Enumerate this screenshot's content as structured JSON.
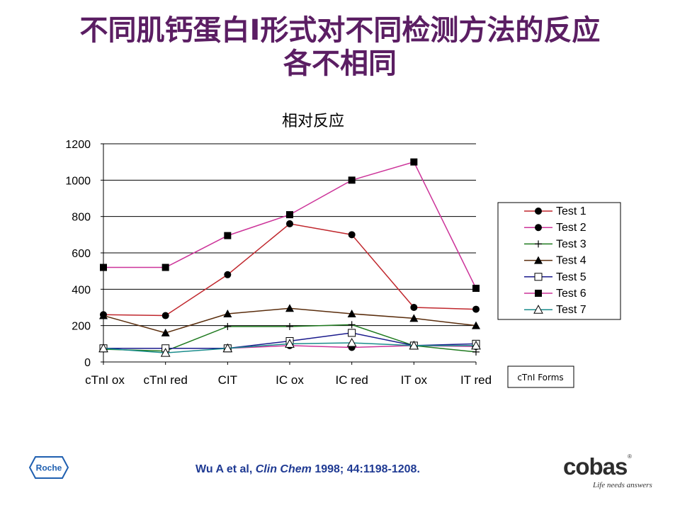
{
  "slide": {
    "title_line1": "不同肌钙蛋白I形式对不同检测方法的反应",
    "title_line2": "各不相同"
  },
  "citation": {
    "authors": "Wu A et al, ",
    "journal": "Clin Chem",
    "details": " 1998; 44:1198-1208."
  },
  "logos": {
    "roche": "Roche",
    "cobas": "cobas",
    "cobas_reg": "®",
    "cobas_tagline": "Life needs answers"
  },
  "chart_data": {
    "type": "line",
    "title": "相对反应",
    "xlabel": "cTnI Forms",
    "ylabel": "",
    "categories": [
      "cTnI ox",
      "cTnI red",
      "CIT",
      "IC ox",
      "IC red",
      "IT ox",
      "IT red"
    ],
    "ylim": [
      0,
      1200
    ],
    "yticks": [
      0,
      200,
      400,
      600,
      800,
      1000,
      1200
    ],
    "grid": true,
    "legend_position": "right",
    "series": [
      {
        "name": "Test 1",
        "color": "#c0272d",
        "marker": "circle-filled",
        "values": [
          260,
          255,
          480,
          760,
          700,
          300,
          290
        ]
      },
      {
        "name": "Test 2",
        "color": "#cc3399",
        "marker": "circle-filled",
        "values": [
          75,
          75,
          75,
          90,
          80,
          90,
          85
        ]
      },
      {
        "name": "Test 3",
        "color": "#1f7a1f",
        "marker": "plus",
        "values": [
          70,
          60,
          195,
          195,
          205,
          90,
          55
        ]
      },
      {
        "name": "Test 4",
        "color": "#5a2d0c",
        "marker": "triangle-filled",
        "values": [
          255,
          160,
          265,
          295,
          265,
          240,
          200
        ]
      },
      {
        "name": "Test 5",
        "color": "#1a1a8c",
        "marker": "square-open",
        "values": [
          75,
          75,
          75,
          115,
          160,
          90,
          100
        ]
      },
      {
        "name": "Test 6",
        "color": "#cc3399",
        "marker": "square-filled",
        "values": [
          520,
          520,
          695,
          810,
          1000,
          1100,
          405
        ]
      },
      {
        "name": "Test 7",
        "color": "#1a8c8c",
        "marker": "triangle-open",
        "values": [
          75,
          50,
          75,
          100,
          105,
          90,
          90
        ]
      }
    ]
  }
}
